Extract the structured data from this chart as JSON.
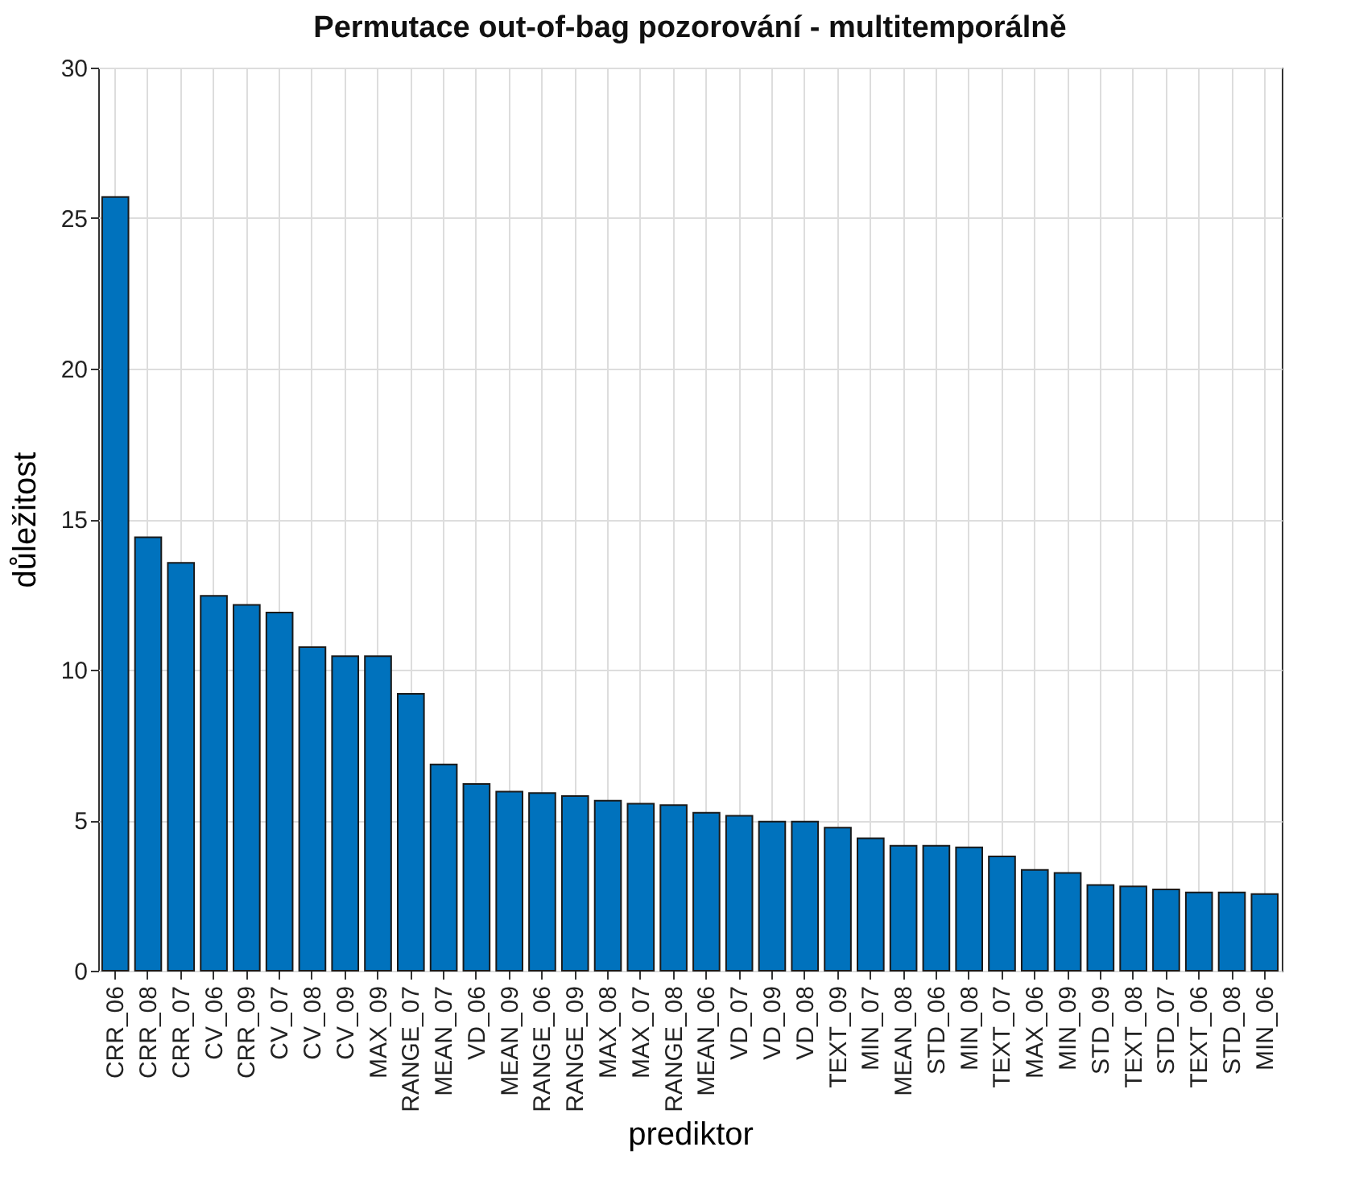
{
  "chart_data": {
    "type": "bar",
    "title": "Permutace out-of-bag pozorování - multitemporálně",
    "xlabel": "prediktor",
    "ylabel": "důležitost",
    "categories": [
      "CRR_06",
      "CRR_08",
      "CRR_07",
      "CV_06",
      "CRR_09",
      "CV_07",
      "CV_08",
      "CV_09",
      "MAX_09",
      "RANGE_07",
      "MEAN_07",
      "VD_06",
      "MEAN_09",
      "RANGE_06",
      "RANGE_09",
      "MAX_08",
      "MAX_07",
      "RANGE_08",
      "MEAN_06",
      "VD_07",
      "VD_09",
      "VD_08",
      "TEXT_09",
      "MIN_07",
      "MEAN_08",
      "STD_06",
      "MIN_08",
      "TEXT_07",
      "MAX_06",
      "MIN_09",
      "STD_09",
      "TEXT_08",
      "STD_07",
      "TEXT_06",
      "STD_08",
      "MIN_06"
    ],
    "values": [
      25.7,
      14.4,
      13.55,
      12.45,
      12.15,
      11.9,
      10.75,
      10.45,
      10.45,
      9.2,
      6.85,
      6.2,
      5.95,
      5.9,
      5.8,
      5.65,
      5.55,
      5.5,
      5.25,
      5.15,
      4.95,
      4.95,
      4.75,
      4.4,
      4.15,
      4.15,
      4.1,
      3.8,
      3.35,
      3.25,
      2.85,
      2.8,
      2.7,
      2.6,
      2.6,
      2.55
    ],
    "color": "#0072bd",
    "ylim": [
      0,
      30
    ],
    "yticks": [
      0,
      5,
      10,
      15,
      20,
      25,
      30
    ],
    "grid": true
  }
}
